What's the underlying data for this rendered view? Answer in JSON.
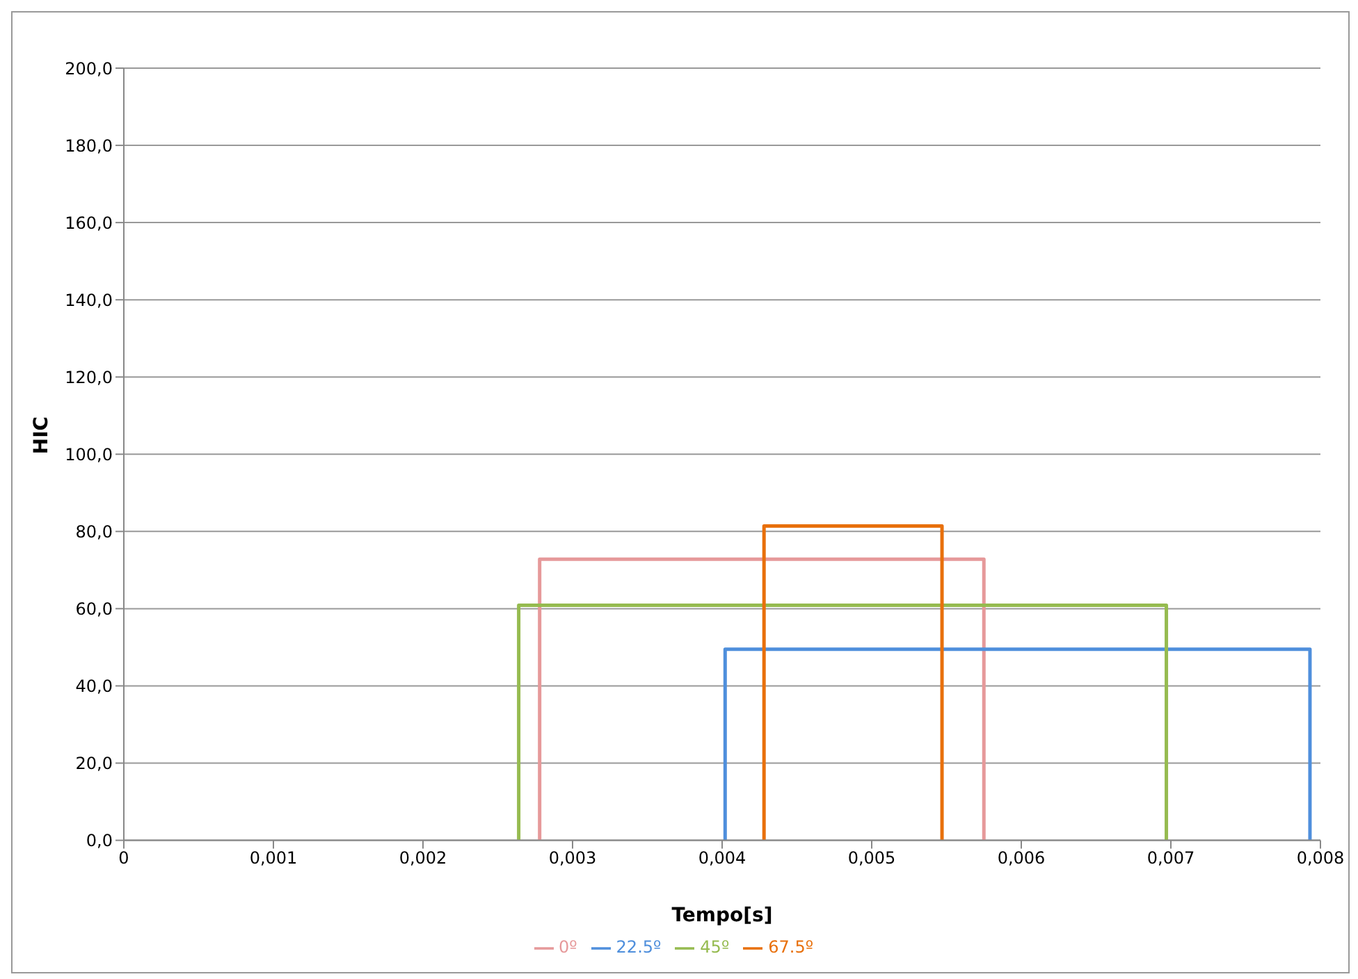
{
  "chart_data": {
    "type": "line",
    "xlabel": "Tempo[s]",
    "ylabel": "HIC",
    "series": [
      {
        "name": "0º",
        "color": "#e6999a",
        "x": [
          0.00278,
          0.00278,
          0.00575,
          0.00575
        ],
        "values": [
          0,
          72.8,
          72.8,
          0
        ]
      },
      {
        "name": "22.5º",
        "color": "#4f8fdc",
        "x": [
          0.00402,
          0.00402,
          0.00793,
          0.00793
        ],
        "values": [
          0,
          49.5,
          49.5,
          0
        ]
      },
      {
        "name": "45º",
        "color": "#96bb50",
        "x": [
          0.00264,
          0.00264,
          0.00697,
          0.00697
        ],
        "values": [
          0,
          60.9,
          60.9,
          0
        ]
      },
      {
        "name": "67.5º",
        "color": "#e8700c",
        "x": [
          0.00428,
          0.00428,
          0.00547,
          0.00547
        ],
        "values": [
          0,
          81.4,
          81.4,
          0
        ]
      }
    ],
    "xlim": [
      0,
      0.008
    ],
    "xticks": [
      0,
      {
        "value": 0.001,
        "label": "0,001"
      },
      {
        "value": 0.002,
        "label": "0,002"
      },
      {
        "value": 0.003,
        "label": "0,003"
      },
      {
        "value": 0.004,
        "label": "0,004"
      },
      {
        "value": 0.005,
        "label": "0,005"
      },
      {
        "value": 0.006,
        "label": "0,006"
      },
      {
        "value": 0.007,
        "label": "0,007"
      },
      {
        "value": 0.008,
        "label": "0,008"
      }
    ],
    "ylim": [
      0,
      200
    ],
    "yticks": [
      {
        "value": 0,
        "label": "0,0"
      },
      {
        "value": 20,
        "label": "20,0"
      },
      {
        "value": 40,
        "label": "40,0"
      },
      {
        "value": 60,
        "label": "60,0"
      },
      {
        "value": 80,
        "label": "80,0"
      },
      {
        "value": 100,
        "label": "100,0"
      },
      {
        "value": 120,
        "label": "120,0"
      },
      {
        "value": 140,
        "label": "140,0"
      },
      {
        "value": 160,
        "label": "160,0"
      },
      {
        "value": 180,
        "label": "180,0"
      },
      {
        "value": 200,
        "label": "200,0"
      }
    ],
    "grid": "y",
    "legend": "bottom",
    "marker": "none",
    "line_style": "solid"
  }
}
